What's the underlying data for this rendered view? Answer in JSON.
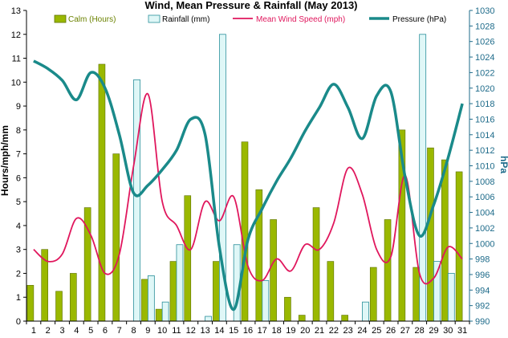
{
  "chart_data": {
    "type": "bar",
    "title": "Wind, Mean Pressure & Rainfall (May 2013)",
    "ylabel": "Hours/mph/mm",
    "y2label": "hPa",
    "ylim": [
      0,
      13
    ],
    "y2lim": [
      990,
      1030
    ],
    "x": [
      1,
      2,
      3,
      4,
      5,
      6,
      7,
      8,
      9,
      10,
      11,
      12,
      13,
      14,
      15,
      16,
      17,
      18,
      19,
      20,
      21,
      22,
      23,
      24,
      25,
      26,
      27,
      28,
      29,
      30,
      31
    ],
    "legend_position": "top",
    "grid": false,
    "series": [
      {
        "name": "Calm (Hours)",
        "kind": "bar",
        "color": "#9ab800",
        "values": [
          1.5,
          3.0,
          1.25,
          2.0,
          4.75,
          10.75,
          7.0,
          0,
          1.75,
          0.5,
          2.5,
          5.25,
          0,
          2.5,
          0,
          7.5,
          5.5,
          4.25,
          1.0,
          0.25,
          4.75,
          2.5,
          0.25,
          0,
          2.25,
          4.25,
          8.0,
          2.25,
          7.25,
          6.75,
          6.25
        ]
      },
      {
        "name": "Rainfall (mm)",
        "kind": "bar",
        "color": "#dff7f7",
        "values": [
          0,
          0,
          0,
          0,
          0,
          0,
          0,
          10.1,
          1.9,
          0.8,
          3.2,
          0,
          0.2,
          12.0,
          3.2,
          0,
          1.7,
          0,
          0,
          0,
          0,
          0,
          0,
          0.8,
          0,
          0,
          0,
          12.0,
          2.5,
          2.0,
          0
        ]
      },
      {
        "name": "Mean Wind Speed (mph)",
        "kind": "line",
        "axis": "left",
        "color": "#e0175d",
        "values": [
          3.0,
          2.5,
          2.8,
          4.3,
          3.6,
          2.0,
          2.8,
          6.5,
          9.5,
          5.0,
          4.0,
          3.0,
          5.0,
          4.2,
          5.2,
          2.3,
          1.7,
          2.6,
          2.1,
          3.2,
          3.0,
          4.1,
          6.4,
          5.3,
          3.0,
          2.7,
          6.1,
          2.0,
          1.8,
          3.1,
          2.6
        ]
      },
      {
        "name": "Pressure (hPa)",
        "kind": "line",
        "axis": "right",
        "color": "#1a8a8a",
        "values": [
          1023.5,
          1022.5,
          1021.0,
          1018.5,
          1022.0,
          1020.0,
          1014.0,
          1006.5,
          1007.5,
          1009.5,
          1012.0,
          1016.0,
          1014.0,
          999.5,
          991.5,
          1000.5,
          1004.5,
          1008.0,
          1011.0,
          1014.5,
          1017.5,
          1020.5,
          1017.5,
          1013.5,
          1019.0,
          1019.5,
          1008.5,
          1001.0,
          1005.0,
          1011.0,
          1018.0
        ]
      }
    ]
  }
}
